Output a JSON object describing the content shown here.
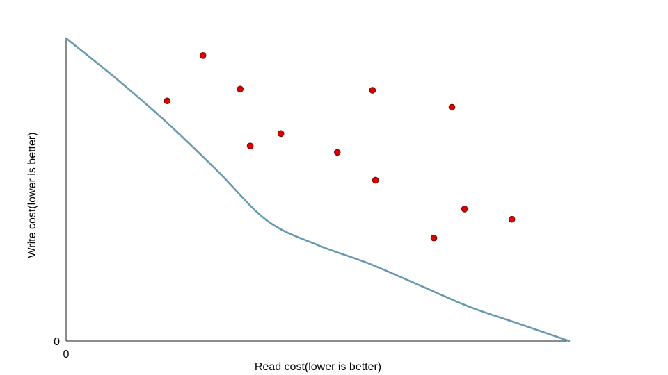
{
  "chart_data": {
    "type": "scatter",
    "title": "",
    "xlabel": "Read cost(lower is better)",
    "ylabel": "Write cost(lower is better)",
    "xlim": [
      0,
      100
    ],
    "ylim": [
      0,
      100
    ],
    "x_tick_labels": [
      "0"
    ],
    "y_tick_labels": [
      "0"
    ],
    "grid": false,
    "legend": "none",
    "series": [
      {
        "type": "line",
        "color": "#6699b0",
        "x": [
          0,
          10,
          20,
          30,
          40,
          50,
          60,
          70,
          80,
          90,
          100
        ],
        "y": [
          100,
          86.6,
          72.2,
          56.3,
          39.7,
          31.7,
          25.7,
          18.6,
          11.4,
          5.7,
          0
        ]
      },
      {
        "type": "scatter",
        "color": "#dd0000",
        "edge_color": "#7a0000",
        "points": [
          {
            "x": 20.1,
            "y": 79.3
          },
          {
            "x": 27.2,
            "y": 94.3
          },
          {
            "x": 34.6,
            "y": 83.2
          },
          {
            "x": 36.6,
            "y": 64.4
          },
          {
            "x": 42.7,
            "y": 68.5
          },
          {
            "x": 53.9,
            "y": 62.3
          },
          {
            "x": 60.9,
            "y": 82.8
          },
          {
            "x": 61.5,
            "y": 53.1
          },
          {
            "x": 73.1,
            "y": 34.0
          },
          {
            "x": 76.7,
            "y": 77.2
          },
          {
            "x": 79.2,
            "y": 43.6
          },
          {
            "x": 88.6,
            "y": 40.2
          }
        ]
      }
    ]
  }
}
